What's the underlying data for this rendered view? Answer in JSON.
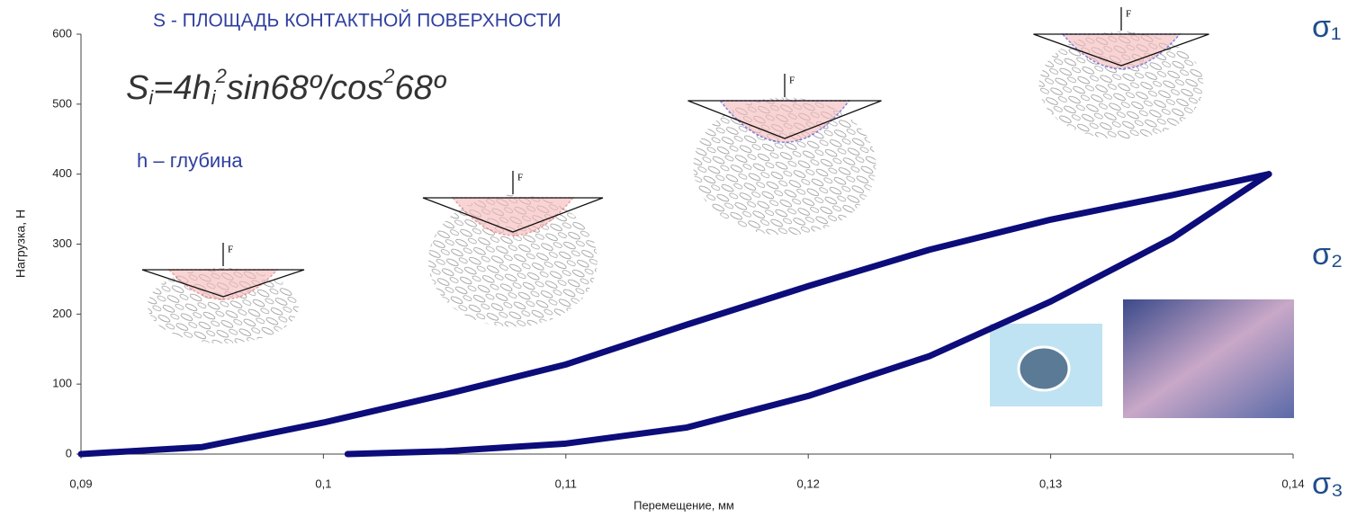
{
  "chart_data": {
    "type": "line",
    "title": "S - ПЛОЩАДЬ КОНТАКТНОЙ ПОВЕРХНОСТИ",
    "formula": [
      "S",
      "i",
      "=4h",
      "i",
      "2",
      "sin68º/cos",
      "2",
      "68º"
    ],
    "note": "h – глубина",
    "stress_labels": [
      "σ₁",
      "σ₂",
      "σ₃"
    ],
    "force_labels": [
      "F",
      "F",
      "F",
      "F"
    ],
    "x_label": "Перемещение, мм",
    "y_label": "Нагрузка, Н",
    "xlim": [
      0.09,
      0.14
    ],
    "ylim": [
      0,
      600
    ],
    "xticks": [
      {
        "value": 0.09,
        "label": "0,09"
      },
      {
        "value": 0.1,
        "label": "0,1"
      },
      {
        "value": 0.11,
        "label": "0,11"
      },
      {
        "value": 0.12,
        "label": "0,12"
      },
      {
        "value": 0.13,
        "label": "0,13"
      },
      {
        "value": 0.14,
        "label": "0,14"
      }
    ],
    "yticks": [
      0,
      100,
      200,
      300,
      400,
      500,
      600
    ],
    "series": [
      {
        "color": "#0c0c7a",
        "x": [
          0.09,
          0.095,
          0.1,
          0.105,
          0.11,
          0.115,
          0.12,
          0.125,
          0.13,
          0.135,
          0.139
        ],
        "values": [
          0,
          10,
          45,
          85,
          128,
          185,
          240,
          292,
          335,
          370,
          400
        ]
      },
      {
        "color": "#0c0c7a",
        "x": [
          0.101,
          0.105,
          0.11,
          0.115,
          0.12,
          0.125,
          0.13,
          0.135,
          0.139
        ],
        "values": [
          0,
          4,
          15,
          38,
          83,
          140,
          218,
          308,
          400
        ]
      }
    ]
  }
}
